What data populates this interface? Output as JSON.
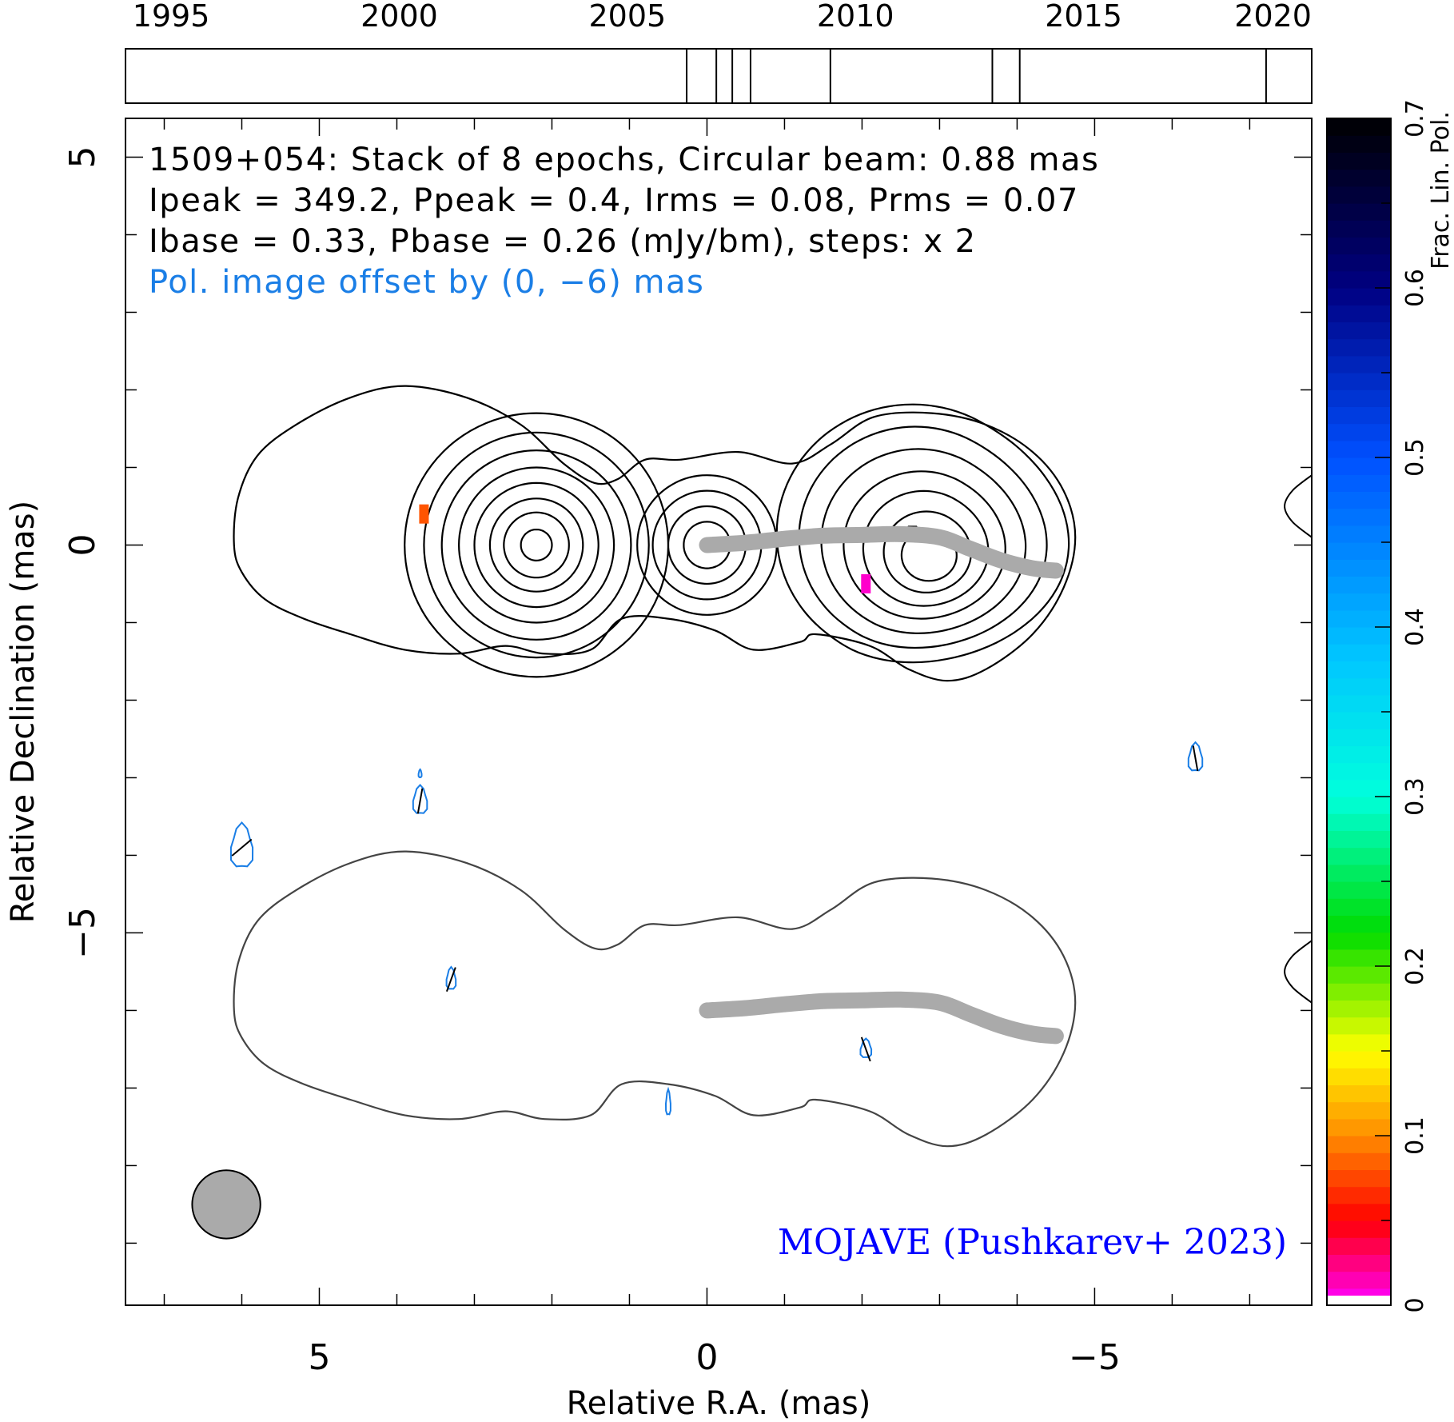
{
  "chart_data": {
    "type": "contour",
    "source": "1509+054",
    "header_lines": [
      "1509+054: Stack of 8 epochs, Circular beam: 0.88 mas",
      "Ipeak = 349.2, Ppeak = 0.4, Irms = 0.08, Prms = 0.07",
      "Ibase = 0.33, Pbase = 0.26 (mJy/bm), steps: x 2"
    ],
    "offset_note": "Pol. image offset by (0, −6) mas",
    "credit": "MOJAVE (Pushkarev+ 2023)",
    "xlabel": "Relative R.A. (mas)",
    "ylabel": "Relative Declination (mas)",
    "xlim": [
      7.5,
      -7.8
    ],
    "ylim": [
      -9.8,
      5.5
    ],
    "x_ticks": [
      {
        "value": 5,
        "label": "5"
      },
      {
        "value": 0,
        "label": "0"
      },
      {
        "value": -5,
        "label": "−5"
      }
    ],
    "y_ticks": [
      {
        "value": 5,
        "label": "5"
      },
      {
        "value": 0,
        "label": "0"
      },
      {
        "value": -5,
        "label": "−5"
      }
    ],
    "timeline": {
      "range": [
        1994,
        2020
      ],
      "tick_labels": [
        "1995",
        "2000",
        "2005",
        "2010",
        "2015",
        "2020"
      ],
      "epochs": [
        2006.3,
        2006.95,
        2007.3,
        2007.7,
        2009.45,
        2013.0,
        2013.6,
        2019.0
      ]
    },
    "colorbar": {
      "label": "Frac. Lin. Pol.",
      "range": [
        0,
        0.7
      ],
      "tick_labels": [
        "0",
        "0.1",
        "0.2",
        "0.3",
        "0.4",
        "0.5",
        "0.6",
        "0.7"
      ]
    },
    "beam": {
      "diameter_mas": 0.88,
      "center": [
        6.2,
        -8.5
      ]
    },
    "stokes_i_components": [
      {
        "x": 2.2,
        "y": 0.0
      },
      {
        "x": 0.0,
        "y": 0.0
      },
      {
        "x": -2.65,
        "y": 0.15
      }
    ],
    "ridge_line": [
      [
        0.0,
        0.0
      ],
      [
        -0.5,
        0.03
      ],
      [
        -1.0,
        0.08
      ],
      [
        -1.5,
        0.12
      ],
      [
        -2.0,
        0.13
      ],
      [
        -2.5,
        0.14
      ],
      [
        -3.0,
        0.1
      ],
      [
        -3.4,
        -0.05
      ],
      [
        -3.8,
        -0.2
      ],
      [
        -4.2,
        -0.3
      ],
      [
        -4.5,
        -0.33
      ]
    ],
    "frac_pol_pixels": [
      {
        "x": 3.65,
        "y": 0.4,
        "value": 0.08
      },
      {
        "x": -2.05,
        "y": -0.5,
        "value": 0.01
      }
    ]
  },
  "colors": {
    "stokes_i": "#000000",
    "polarized": "#1a7ee6",
    "ridge": "#aaaaaa",
    "outline": "#444444",
    "credit": "#0000ff",
    "beam_fill": "#aaaaaa"
  }
}
